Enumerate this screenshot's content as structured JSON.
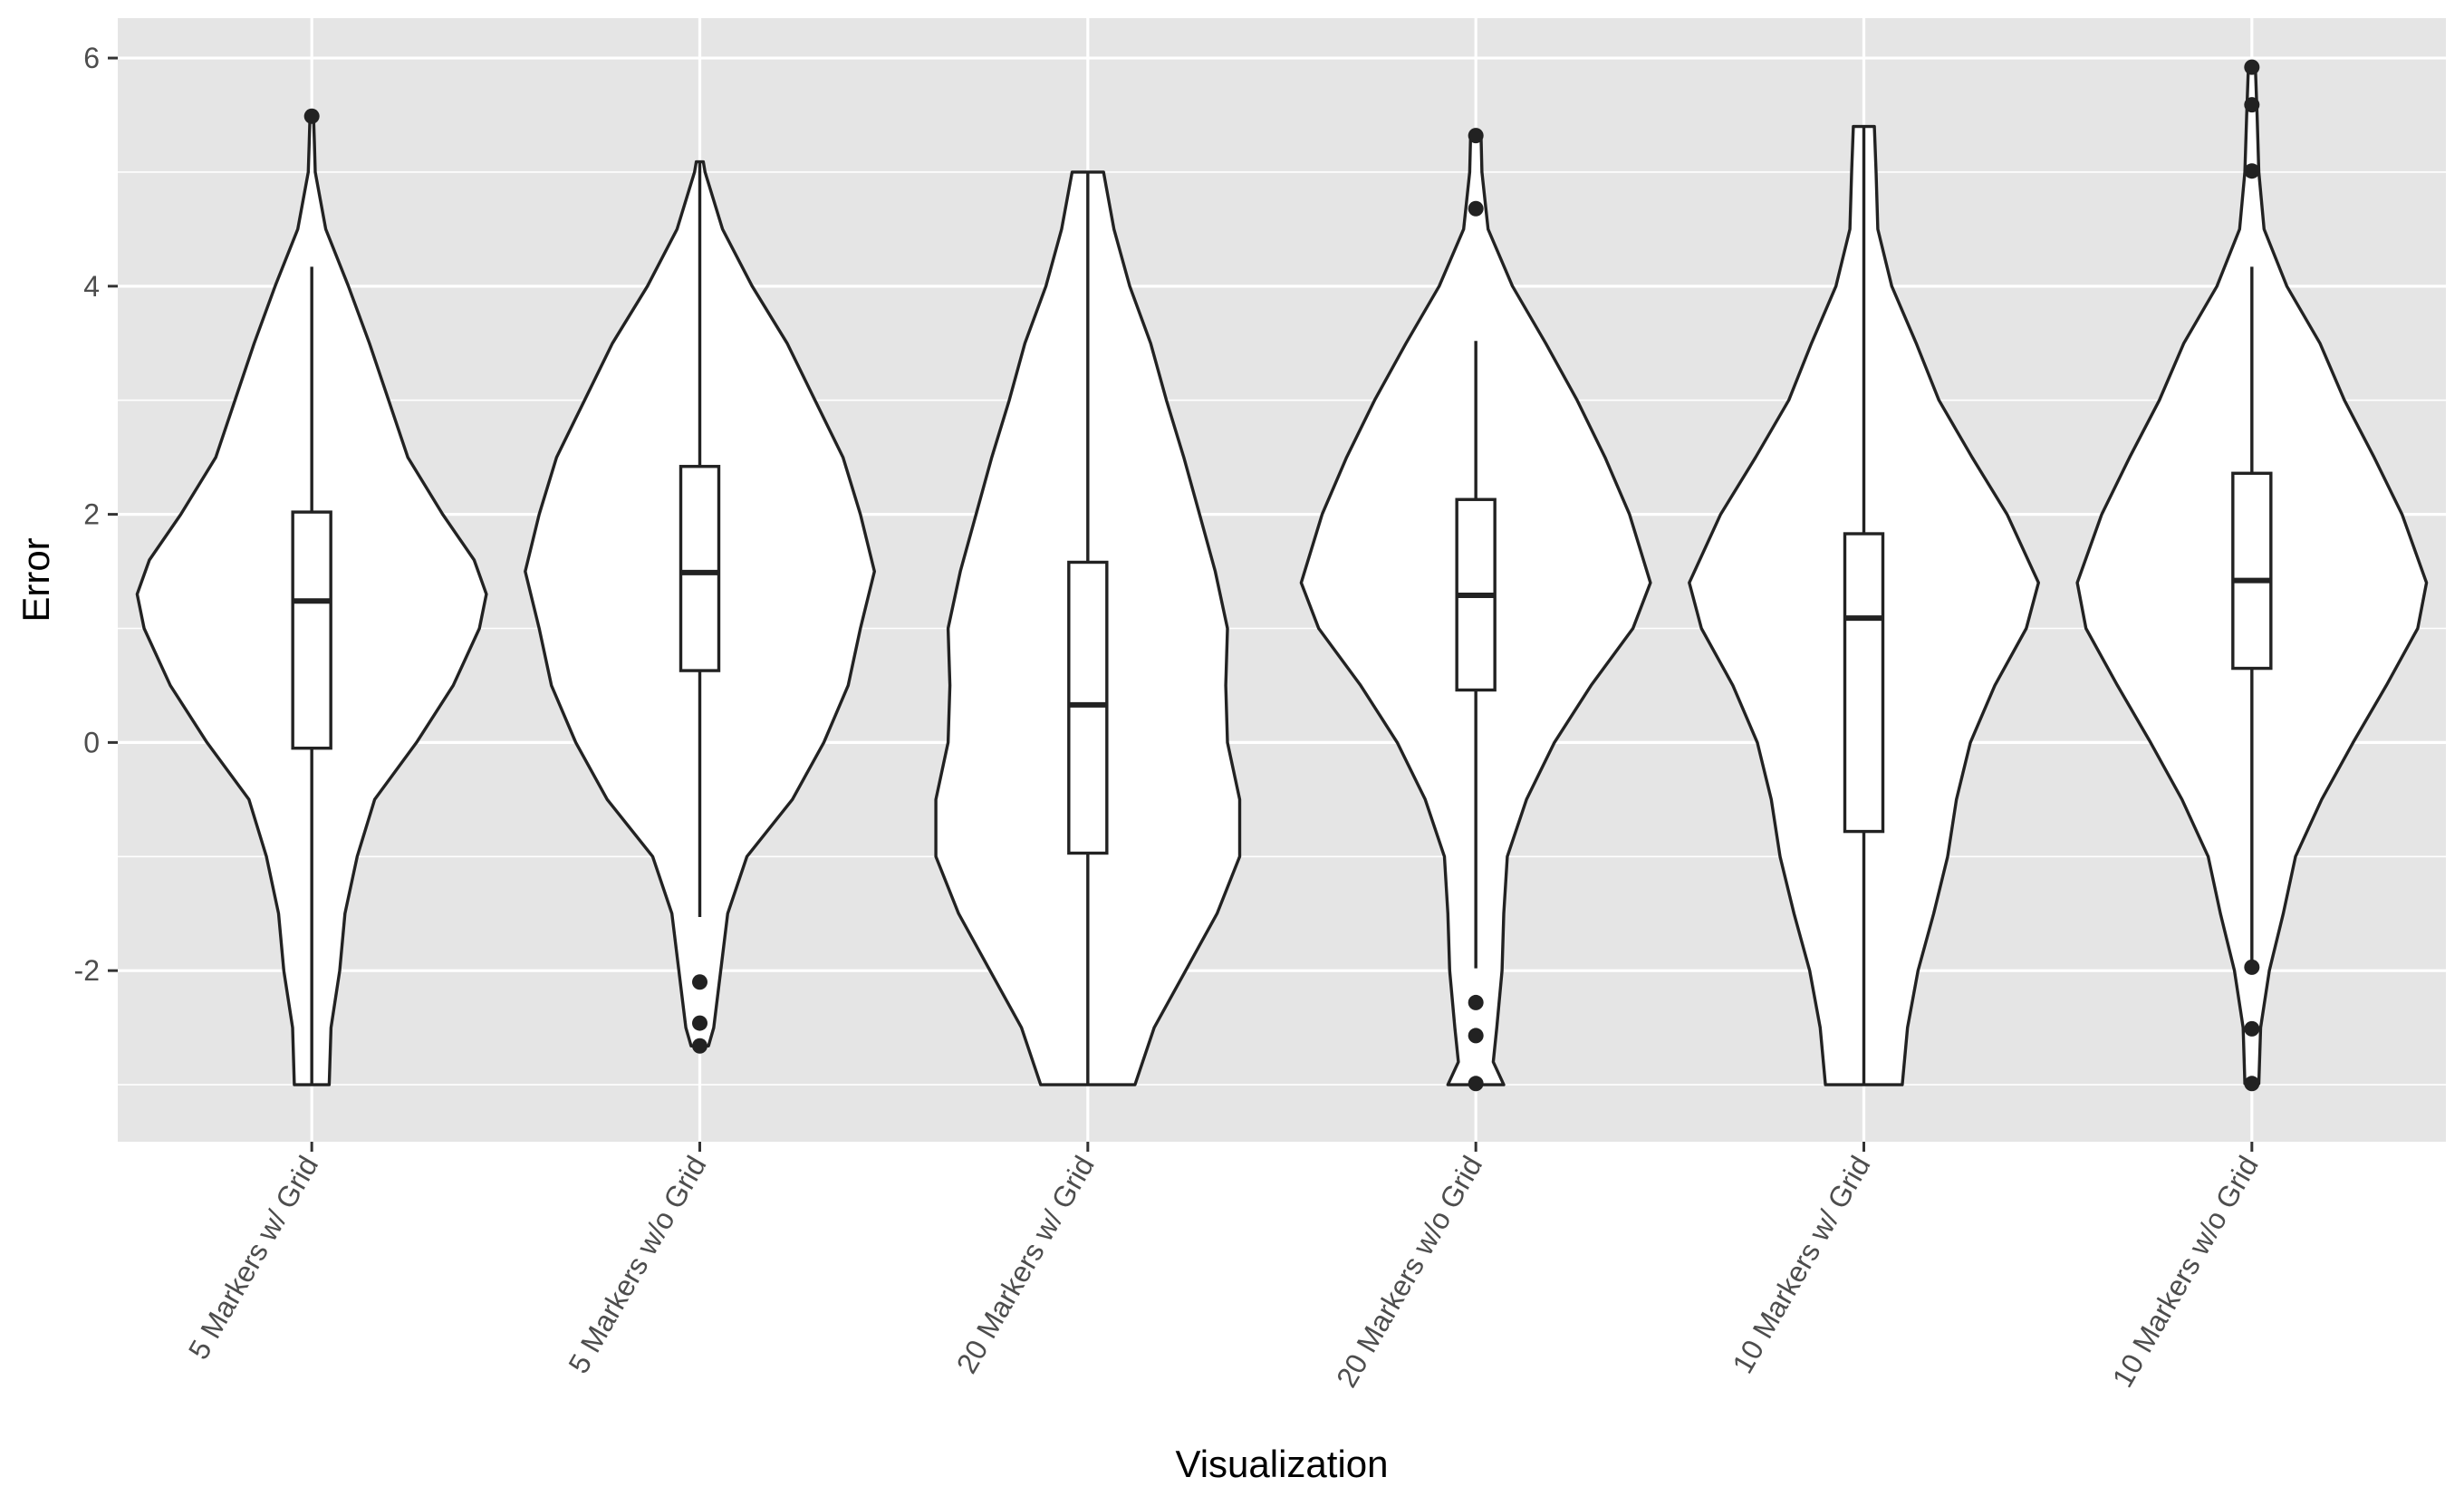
{
  "chart_data": {
    "type": "violin",
    "title": "",
    "xlabel": "Visualization",
    "ylabel": "Error",
    "ylim": [
      -3.5,
      6.35
    ],
    "yticks": [
      -2,
      0,
      2,
      4,
      6
    ],
    "ytick_labels": [
      "-2",
      "0",
      "2",
      "4",
      "6"
    ],
    "grid": true,
    "legend": "none",
    "categories": [
      "5 Markers w/ Grid",
      "5 Markers w/o Grid",
      "20 Markers w/ Grid",
      "20 Markers w/o Grid",
      "10 Markers w/ Grid",
      "10 Markers w/o Grid"
    ],
    "boxes": [
      {
        "q1": -0.05,
        "median": 1.24,
        "q3": 2.02,
        "whisker_low": -3.0,
        "whisker_high": 4.17
      },
      {
        "q1": 0.63,
        "median": 1.49,
        "q3": 2.42,
        "whisker_low": -1.53,
        "whisker_high": 5.09
      },
      {
        "q1": -0.97,
        "median": 0.33,
        "q3": 1.58,
        "whisker_low": -3.0,
        "whisker_high": 5.0
      },
      {
        "q1": 0.46,
        "median": 1.29,
        "q3": 2.13,
        "whisker_low": -1.98,
        "whisker_high": 3.52
      },
      {
        "q1": -0.78,
        "median": 1.09,
        "q3": 1.83,
        "whisker_low": -3.0,
        "whisker_high": 5.4
      },
      {
        "q1": 0.65,
        "median": 1.42,
        "q3": 2.36,
        "whisker_low": -1.97,
        "whisker_high": 4.17
      }
    ],
    "outliers": [
      [
        5.49
      ],
      [
        -2.1,
        -2.46,
        -2.66
      ],
      [],
      [
        5.32,
        4.68,
        -2.28,
        -2.57,
        -2.99
      ],
      [],
      [
        5.92,
        5.59,
        5.01,
        -1.97,
        -2.51,
        -2.99
      ]
    ],
    "violins": [
      {
        "y": [
          -3.0,
          -2.5,
          -2.0,
          -1.5,
          -1.0,
          -0.5,
          0.0,
          0.5,
          1.0,
          1.3,
          1.6,
          2.0,
          2.5,
          3.0,
          3.5,
          4.0,
          4.5,
          5.0,
          5.25,
          5.49
        ],
        "density": [
          0.1,
          0.11,
          0.16,
          0.19,
          0.26,
          0.36,
          0.6,
          0.81,
          0.96,
          1.0,
          0.93,
          0.75,
          0.55,
          0.44,
          0.33,
          0.21,
          0.08,
          0.02,
          0.015,
          0.01
        ]
      },
      {
        "y": [
          -2.66,
          -2.5,
          -2.0,
          -1.5,
          -1.0,
          -0.5,
          0.0,
          0.5,
          1.0,
          1.5,
          2.0,
          2.5,
          3.0,
          3.5,
          4.0,
          4.5,
          5.0,
          5.09
        ],
        "density": [
          0.05,
          0.08,
          0.12,
          0.16,
          0.27,
          0.53,
          0.71,
          0.85,
          0.92,
          1.0,
          0.92,
          0.82,
          0.66,
          0.5,
          0.3,
          0.13,
          0.03,
          0.02
        ]
      },
      {
        "y": [
          -3.0,
          -2.5,
          -2.0,
          -1.5,
          -1.0,
          -0.5,
          0.0,
          0.5,
          1.0,
          1.5,
          2.0,
          2.5,
          3.0,
          3.5,
          4.0,
          4.5,
          5.0
        ],
        "density": [
          0.27,
          0.38,
          0.56,
          0.74,
          0.87,
          0.87,
          0.8,
          0.79,
          0.8,
          0.73,
          0.64,
          0.55,
          0.45,
          0.36,
          0.24,
          0.15,
          0.09
        ]
      },
      {
        "y": [
          -3.0,
          -2.8,
          -2.5,
          -2.0,
          -1.5,
          -1.0,
          -0.5,
          0.0,
          0.5,
          1.0,
          1.4,
          2.0,
          2.5,
          3.0,
          3.5,
          4.0,
          4.5,
          5.0,
          5.32
        ],
        "density": [
          0.16,
          0.1,
          0.12,
          0.15,
          0.16,
          0.18,
          0.29,
          0.45,
          0.66,
          0.9,
          1.0,
          0.88,
          0.74,
          0.58,
          0.4,
          0.21,
          0.07,
          0.035,
          0.03
        ]
      },
      {
        "y": [
          -3.0,
          -2.5,
          -2.0,
          -1.5,
          -1.0,
          -0.5,
          0.0,
          0.5,
          1.0,
          1.4,
          2.0,
          2.5,
          3.0,
          3.5,
          4.0,
          4.5,
          5.0,
          5.4
        ],
        "density": [
          0.22,
          0.25,
          0.31,
          0.4,
          0.48,
          0.53,
          0.61,
          0.75,
          0.93,
          1.0,
          0.82,
          0.62,
          0.43,
          0.3,
          0.16,
          0.08,
          0.07,
          0.06
        ]
      },
      {
        "y": [
          -2.99,
          -2.5,
          -2.0,
          -1.5,
          -1.0,
          -0.5,
          0.0,
          0.5,
          1.0,
          1.4,
          2.0,
          2.5,
          3.0,
          3.5,
          4.0,
          4.5,
          5.0,
          5.5,
          5.92
        ],
        "density": [
          0.04,
          0.05,
          0.1,
          0.18,
          0.25,
          0.4,
          0.58,
          0.77,
          0.95,
          1.0,
          0.86,
          0.7,
          0.53,
          0.39,
          0.2,
          0.07,
          0.04,
          0.03,
          0.02
        ]
      }
    ]
  }
}
